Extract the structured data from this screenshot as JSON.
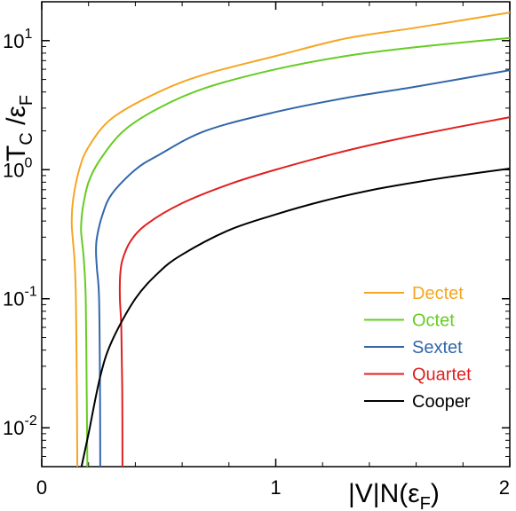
{
  "chart_data": {
    "type": "line",
    "title": "",
    "xlabel": "|V|N(ε_F)",
    "ylabel": "T_C /ε_F",
    "xlim": [
      0,
      2
    ],
    "ylim": [
      0.005,
      20
    ],
    "yscale": "log",
    "grid": false,
    "legend_position": "center-right",
    "x_ticks": [
      {
        "value": 0,
        "label": "0"
      },
      {
        "value": 1,
        "label": "1"
      },
      {
        "value": 2,
        "label": "2"
      }
    ],
    "y_ticks": [
      {
        "value": 0.01,
        "base": "10",
        "exp": "-2"
      },
      {
        "value": 0.1,
        "base": "10",
        "exp": "-1"
      },
      {
        "value": 1,
        "base": "10",
        "exp": "0"
      },
      {
        "value": 10,
        "base": "10",
        "exp": "1"
      }
    ],
    "series": [
      {
        "name": "Dectet",
        "color": "#f5a623",
        "points": [
          [
            0.152,
            0.005
          ],
          [
            0.15,
            0.02
          ],
          [
            0.146,
            0.1
          ],
          [
            0.14,
            0.2
          ],
          [
            0.132,
            0.3
          ],
          [
            0.128,
            0.4
          ],
          [
            0.135,
            0.6
          ],
          [
            0.16,
            1.0
          ],
          [
            0.2,
            1.5
          ],
          [
            0.3,
            2.5
          ],
          [
            0.5,
            4.0
          ],
          [
            0.7,
            5.5
          ],
          [
            1.0,
            7.6
          ],
          [
            1.3,
            10.4
          ],
          [
            1.6,
            12.6
          ],
          [
            2.0,
            16.5
          ]
        ]
      },
      {
        "name": "Octet",
        "color": "#66cc22",
        "points": [
          [
            0.195,
            0.005
          ],
          [
            0.192,
            0.02
          ],
          [
            0.188,
            0.1
          ],
          [
            0.18,
            0.2
          ],
          [
            0.172,
            0.28
          ],
          [
            0.168,
            0.35
          ],
          [
            0.175,
            0.5
          ],
          [
            0.2,
            0.8
          ],
          [
            0.25,
            1.2
          ],
          [
            0.35,
            2.0
          ],
          [
            0.5,
            3.0
          ],
          [
            0.7,
            4.3
          ],
          [
            1.0,
            6.0
          ],
          [
            1.3,
            7.6
          ],
          [
            1.6,
            8.9
          ],
          [
            2.0,
            10.5
          ]
        ]
      },
      {
        "name": "Sextet",
        "color": "#3366aa",
        "points": [
          [
            0.25,
            0.005
          ],
          [
            0.249,
            0.02
          ],
          [
            0.245,
            0.1
          ],
          [
            0.236,
            0.17
          ],
          [
            0.232,
            0.23
          ],
          [
            0.236,
            0.3
          ],
          [
            0.26,
            0.45
          ],
          [
            0.3,
            0.65
          ],
          [
            0.4,
            1.0
          ],
          [
            0.5,
            1.3
          ],
          [
            0.7,
            2.0
          ],
          [
            1.0,
            2.8
          ],
          [
            1.3,
            3.6
          ],
          [
            1.6,
            4.4
          ],
          [
            2.0,
            5.9
          ]
        ]
      },
      {
        "name": "Quartet",
        "color": "#e02020",
        "points": [
          [
            0.345,
            0.005
          ],
          [
            0.344,
            0.02
          ],
          [
            0.34,
            0.06
          ],
          [
            0.334,
            0.1
          ],
          [
            0.335,
            0.15
          ],
          [
            0.345,
            0.2
          ],
          [
            0.38,
            0.28
          ],
          [
            0.45,
            0.38
          ],
          [
            0.6,
            0.55
          ],
          [
            0.8,
            0.77
          ],
          [
            1.0,
            1.0
          ],
          [
            1.3,
            1.4
          ],
          [
            1.6,
            1.85
          ],
          [
            2.0,
            2.55
          ]
        ]
      },
      {
        "name": "Cooper",
        "color": "#000000",
        "points": [
          [
            0.17,
            0.005
          ],
          [
            0.2,
            0.009
          ],
          [
            0.25,
            0.025
          ],
          [
            0.3,
            0.047
          ],
          [
            0.4,
            0.1
          ],
          [
            0.5,
            0.16
          ],
          [
            0.6,
            0.22
          ],
          [
            0.8,
            0.34
          ],
          [
            1.0,
            0.45
          ],
          [
            1.2,
            0.57
          ],
          [
            1.4,
            0.69
          ],
          [
            1.6,
            0.8
          ],
          [
            1.8,
            0.91
          ],
          [
            2.0,
            1.02
          ]
        ]
      }
    ]
  }
}
